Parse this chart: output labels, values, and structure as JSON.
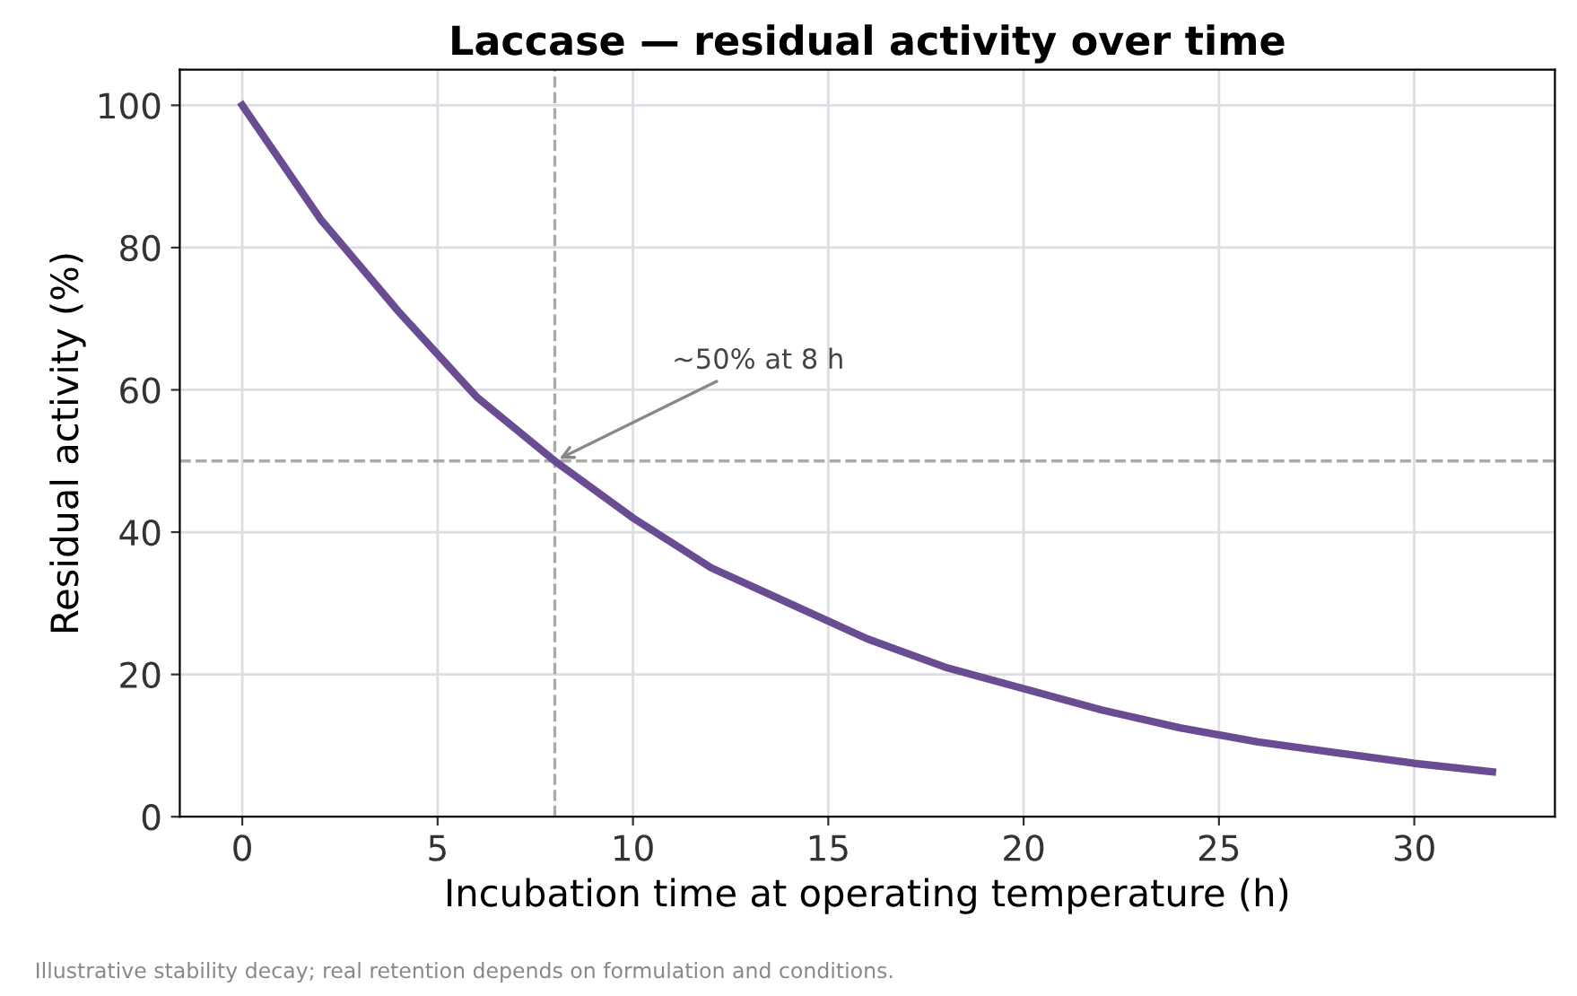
{
  "chart_data": {
    "type": "line",
    "title": "Laccase — residual activity over time",
    "xlabel": "Incubation time at operating temperature (h)",
    "ylabel": "Residual activity (%)",
    "x": [
      0,
      2,
      4,
      6,
      8,
      10,
      12,
      14,
      16,
      18,
      20,
      22,
      24,
      26,
      28,
      30,
      32
    ],
    "series": [
      {
        "color": "#6a4c93",
        "values": [
          100,
          84,
          71,
          59,
          50,
          42,
          35,
          30,
          25,
          21,
          18,
          15,
          12.5,
          10.5,
          9,
          7.5,
          6.3
        ]
      }
    ],
    "xlim": [
      -1.6,
      33.6
    ],
    "ylim": [
      0,
      105
    ],
    "xticks": [
      0,
      5,
      10,
      15,
      20,
      25,
      30
    ],
    "yticks": [
      0,
      20,
      40,
      60,
      80,
      100
    ],
    "grid": true,
    "marker": "none",
    "line_style": "solid",
    "ref_lines": [
      {
        "axis": "x",
        "value": 8,
        "label": null,
        "color": "#aaaaaa",
        "line_style": "dashed"
      },
      {
        "axis": "y",
        "value": 50,
        "label": null,
        "color": "#aaaaaa",
        "line_style": "dashed"
      }
    ],
    "annotations": [
      {
        "text": "~50% at 8 h",
        "x": 8,
        "y": 50
      },
      "Illustrative stability decay; real retention depends on formulation and conditions."
    ]
  }
}
